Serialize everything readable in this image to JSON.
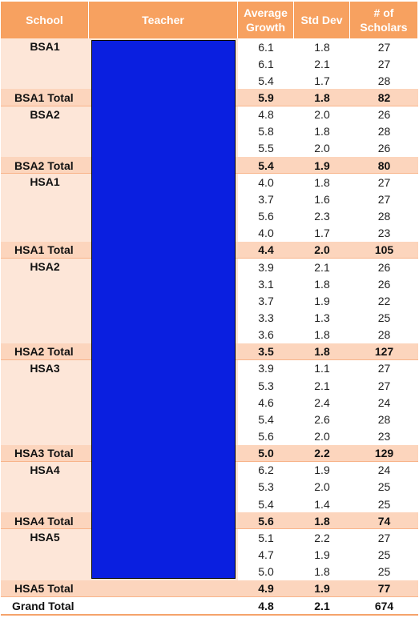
{
  "headers": {
    "school": "School",
    "teacher": "Teacher",
    "avg_growth": "Average Growth",
    "std_dev": "Std Dev",
    "scholars": "# of Scholars"
  },
  "colors": {
    "header_bg": "#f7a160",
    "school_bg": "#fde6d8",
    "total_bg": "#fcd5bd",
    "redaction_block": "#0a1fe0"
  },
  "schools": [
    {
      "name": "BSA1",
      "rows": [
        [
          "6.1",
          "1.8",
          "27"
        ],
        [
          "6.1",
          "2.1",
          "27"
        ],
        [
          "5.4",
          "1.7",
          "28"
        ]
      ],
      "total": {
        "label": "BSA1 Total",
        "avg": "5.9",
        "std": "1.8",
        "count": "82"
      }
    },
    {
      "name": "BSA2",
      "rows": [
        [
          "4.8",
          "2.0",
          "26"
        ],
        [
          "5.8",
          "1.8",
          "28"
        ],
        [
          "5.5",
          "2.0",
          "26"
        ]
      ],
      "total": {
        "label": "BSA2 Total",
        "avg": "5.4",
        "std": "1.9",
        "count": "80"
      }
    },
    {
      "name": "HSA1",
      "rows": [
        [
          "4.0",
          "1.8",
          "27"
        ],
        [
          "3.7",
          "1.6",
          "27"
        ],
        [
          "5.6",
          "2.3",
          "28"
        ],
        [
          "4.0",
          "1.7",
          "23"
        ]
      ],
      "total": {
        "label": "HSA1 Total",
        "avg": "4.4",
        "std": "2.0",
        "count": "105"
      }
    },
    {
      "name": "HSA2",
      "rows": [
        [
          "3.9",
          "2.1",
          "26"
        ],
        [
          "3.1",
          "1.8",
          "26"
        ],
        [
          "3.7",
          "1.9",
          "22"
        ],
        [
          "3.3",
          "1.3",
          "25"
        ],
        [
          "3.6",
          "1.8",
          "28"
        ]
      ],
      "total": {
        "label": "HSA2 Total",
        "avg": "3.5",
        "std": "1.8",
        "count": "127"
      }
    },
    {
      "name": "HSA3",
      "rows": [
        [
          "3.9",
          "1.1",
          "27"
        ],
        [
          "5.3",
          "2.1",
          "27"
        ],
        [
          "4.6",
          "2.4",
          "24"
        ],
        [
          "5.4",
          "2.6",
          "28"
        ],
        [
          "5.6",
          "2.0",
          "23"
        ]
      ],
      "total": {
        "label": "HSA3 Total",
        "avg": "5.0",
        "std": "2.2",
        "count": "129"
      }
    },
    {
      "name": "HSA4",
      "rows": [
        [
          "6.2",
          "1.9",
          "24"
        ],
        [
          "5.3",
          "2.0",
          "25"
        ],
        [
          "5.4",
          "1.4",
          "25"
        ]
      ],
      "total": {
        "label": "HSA4 Total",
        "avg": "5.6",
        "std": "1.8",
        "count": "74"
      }
    },
    {
      "name": "HSA5",
      "rows": [
        [
          "5.1",
          "2.2",
          "27"
        ],
        [
          "4.7",
          "1.9",
          "25"
        ],
        [
          "5.0",
          "1.8",
          "25"
        ]
      ],
      "total": {
        "label": "HSA5 Total",
        "avg": "4.9",
        "std": "1.9",
        "count": "77"
      }
    }
  ],
  "grand_total": {
    "label": "Grand Total",
    "avg": "4.8",
    "std": "2.1",
    "count": "674"
  }
}
